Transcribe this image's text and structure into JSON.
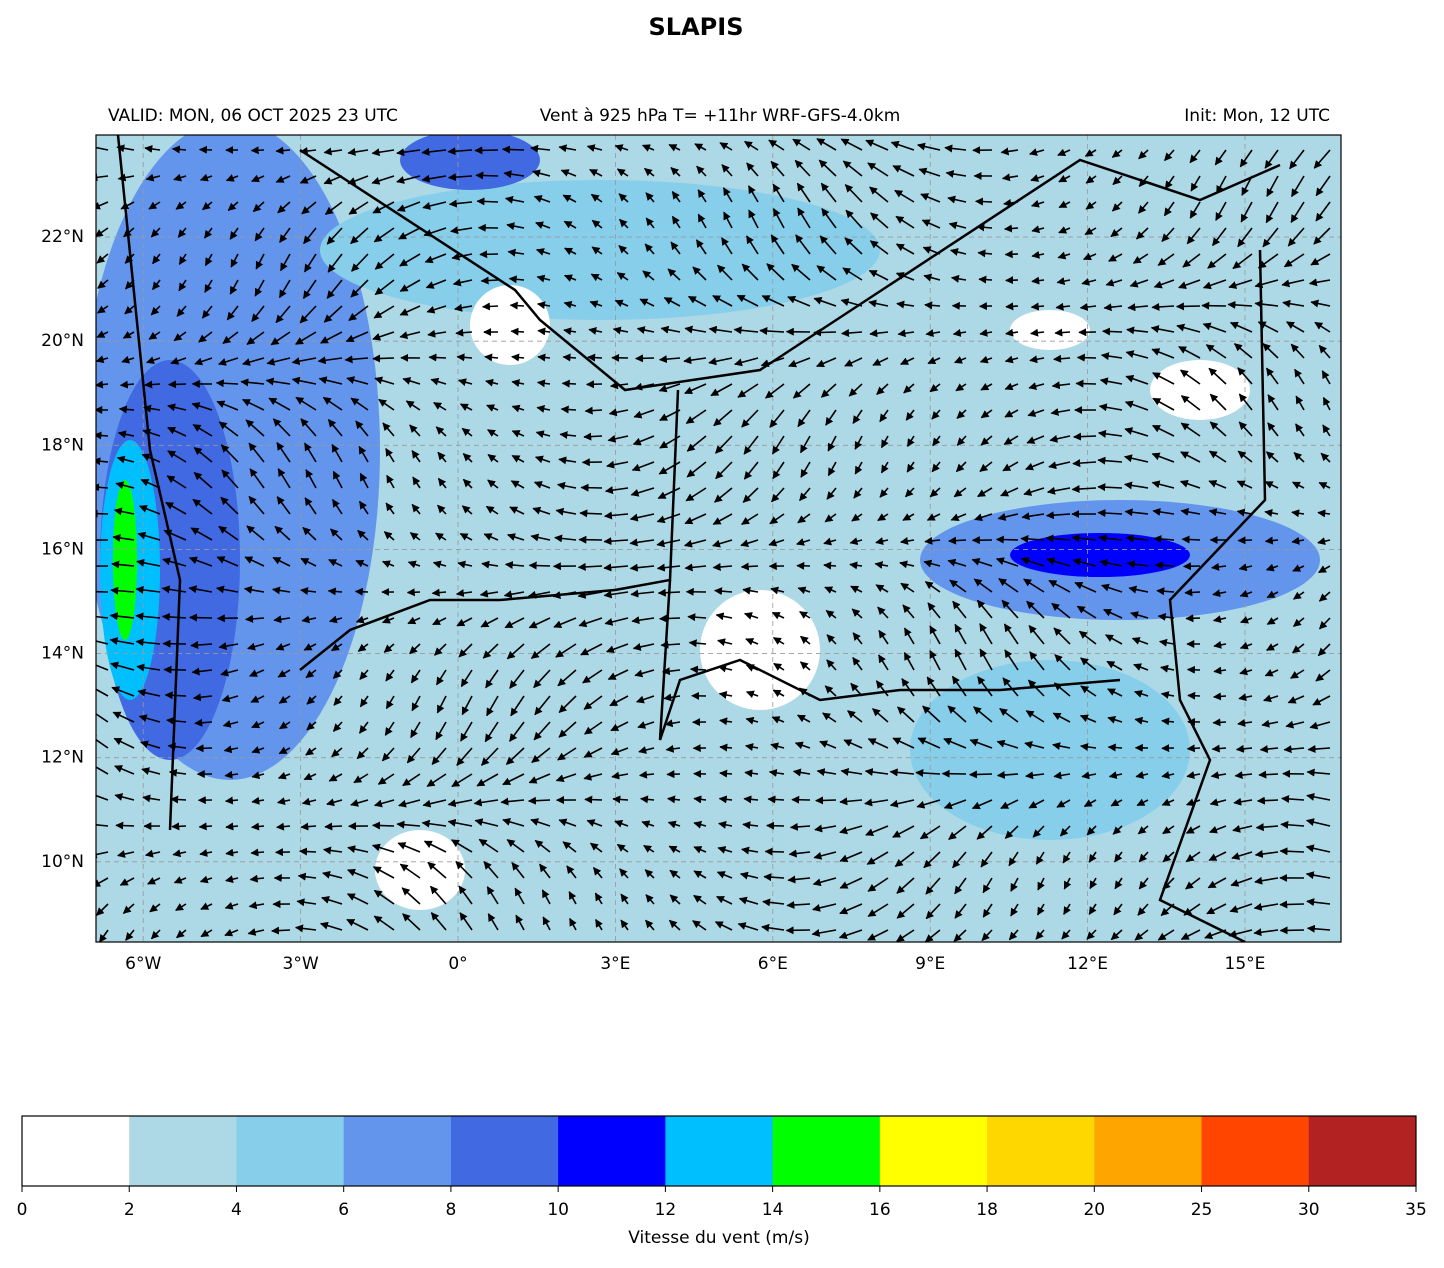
{
  "title": "SLAPIS",
  "subtitle_left": "VALID: MON, 06 OCT 2025 23 UTC",
  "subtitle_center": "Vent à 925 hPa T= +11hr  WRF-GFS-4.0km",
  "subtitle_right": "Init: Mon, 12 UTC",
  "map": {
    "xlim": [
      -6.9,
      16.83
    ],
    "ylim": [
      8.46,
      23.96
    ],
    "xticks": [
      {
        "value": -6,
        "label": "6°W"
      },
      {
        "value": -3,
        "label": "3°W"
      },
      {
        "value": 0,
        "label": "0°"
      },
      {
        "value": 3,
        "label": "3°E"
      },
      {
        "value": 6,
        "label": "6°E"
      },
      {
        "value": 9,
        "label": "9°E"
      },
      {
        "value": 12,
        "label": "12°E"
      },
      {
        "value": 15,
        "label": "15°E"
      }
    ],
    "yticks": [
      {
        "value": 10,
        "label": "10°N"
      },
      {
        "value": 12,
        "label": "12°N"
      },
      {
        "value": 14,
        "label": "14°N"
      },
      {
        "value": 16,
        "label": "16°N"
      },
      {
        "value": 18,
        "label": "18°N"
      },
      {
        "value": 20,
        "label": "20°N"
      },
      {
        "value": 22,
        "label": "22°N"
      }
    ],
    "grid": true
  },
  "colorbar": {
    "label": "Vitesse du vent (m/s)",
    "bounds": [
      0,
      2,
      4,
      6,
      8,
      10,
      12,
      14,
      16,
      18,
      20,
      25,
      30,
      35
    ],
    "colors": [
      "#ffffff",
      "#add8e6",
      "#87ceeb",
      "#6495ed",
      "#4169e1",
      "#0000ff",
      "#00bfff",
      "#00ff00",
      "#ffff00",
      "#ffd700",
      "#ffa500",
      "#ff4500",
      "#b22222"
    ]
  }
}
